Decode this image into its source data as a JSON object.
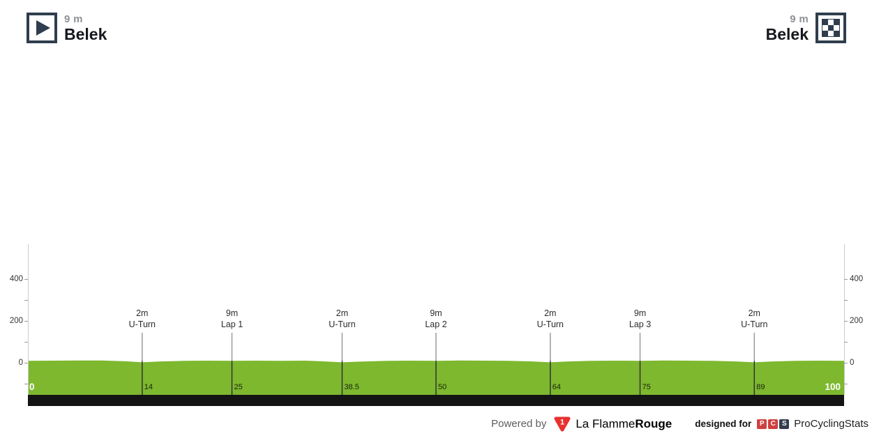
{
  "header": {
    "start": {
      "icon": "start-flag-icon",
      "elevation": "9 m",
      "name": "Belek"
    },
    "finish": {
      "icon": "finish-flag-icon",
      "elevation": "9 m",
      "name": "Belek"
    }
  },
  "chart_data": {
    "type": "area",
    "title": "",
    "xlabel": "",
    "ylabel": "",
    "xlim": [
      0,
      100
    ],
    "x_unit": "km",
    "y_unit": "m",
    "grid": false,
    "legend": false,
    "ytick_labels": [
      "0",
      "200",
      "400"
    ],
    "yticks_major": [
      0,
      200,
      400
    ],
    "yticks_minor": [
      -100,
      100,
      300
    ],
    "x_start_label": "0",
    "x_end_label": "100",
    "profile_color": "#7db82f",
    "profile": [
      [
        0,
        9
      ],
      [
        3,
        10
      ],
      [
        6,
        11
      ],
      [
        9,
        11
      ],
      [
        12,
        7
      ],
      [
        14,
        2
      ],
      [
        16,
        6
      ],
      [
        19,
        9
      ],
      [
        22,
        10
      ],
      [
        25,
        9
      ],
      [
        28,
        10
      ],
      [
        31,
        9
      ],
      [
        34,
        10
      ],
      [
        36,
        7
      ],
      [
        38.5,
        2
      ],
      [
        41,
        6
      ],
      [
        44,
        9
      ],
      [
        47,
        10
      ],
      [
        50,
        9
      ],
      [
        53,
        11
      ],
      [
        56,
        10
      ],
      [
        59,
        9
      ],
      [
        62,
        6
      ],
      [
        64,
        2
      ],
      [
        66,
        6
      ],
      [
        69,
        9
      ],
      [
        72,
        10
      ],
      [
        75,
        9
      ],
      [
        78,
        11
      ],
      [
        81,
        10
      ],
      [
        84,
        9
      ],
      [
        87,
        6
      ],
      [
        89,
        2
      ],
      [
        91,
        6
      ],
      [
        94,
        9
      ],
      [
        97,
        10
      ],
      [
        100,
        9
      ]
    ],
    "markers": [
      {
        "km": 14,
        "km_label": "14",
        "elevation": "2m",
        "name": "U-Turn"
      },
      {
        "km": 25,
        "km_label": "25",
        "elevation": "9m",
        "name": "Lap 1"
      },
      {
        "km": 38.5,
        "km_label": "38.5",
        "elevation": "2m",
        "name": "U-Turn"
      },
      {
        "km": 50,
        "km_label": "50",
        "elevation": "9m",
        "name": "Lap 2"
      },
      {
        "km": 64,
        "km_label": "64",
        "elevation": "2m",
        "name": "U-Turn"
      },
      {
        "km": 75,
        "km_label": "75",
        "elevation": "9m",
        "name": "Lap 3"
      },
      {
        "km": 89,
        "km_label": "89",
        "elevation": "2m",
        "name": "U-Turn"
      }
    ]
  },
  "footer": {
    "powered_by": "Powered by",
    "lfr_logo_icon": "la-flamme-rouge-logo",
    "lfr_name_regular": "La Flamme",
    "lfr_name_bold": "Rouge",
    "designed_for": "designed for",
    "pcs_letters": [
      "P",
      "C",
      "S"
    ],
    "pcs_name": "ProCyclingStats"
  },
  "colors": {
    "profile_green": "#7db82f",
    "axis_line": "#cccccc",
    "tick": "#999999",
    "marker_line_upper": "#9a9a9a",
    "marker_line_lower": "#333333",
    "bottom_bar": "#141414",
    "brand_navy": "#2f3e4e",
    "lfr_red": "#e8312f",
    "pcs_red": "#ce4040",
    "pcs_dark": "#333d4c",
    "muted_text": "#8d9095"
  }
}
